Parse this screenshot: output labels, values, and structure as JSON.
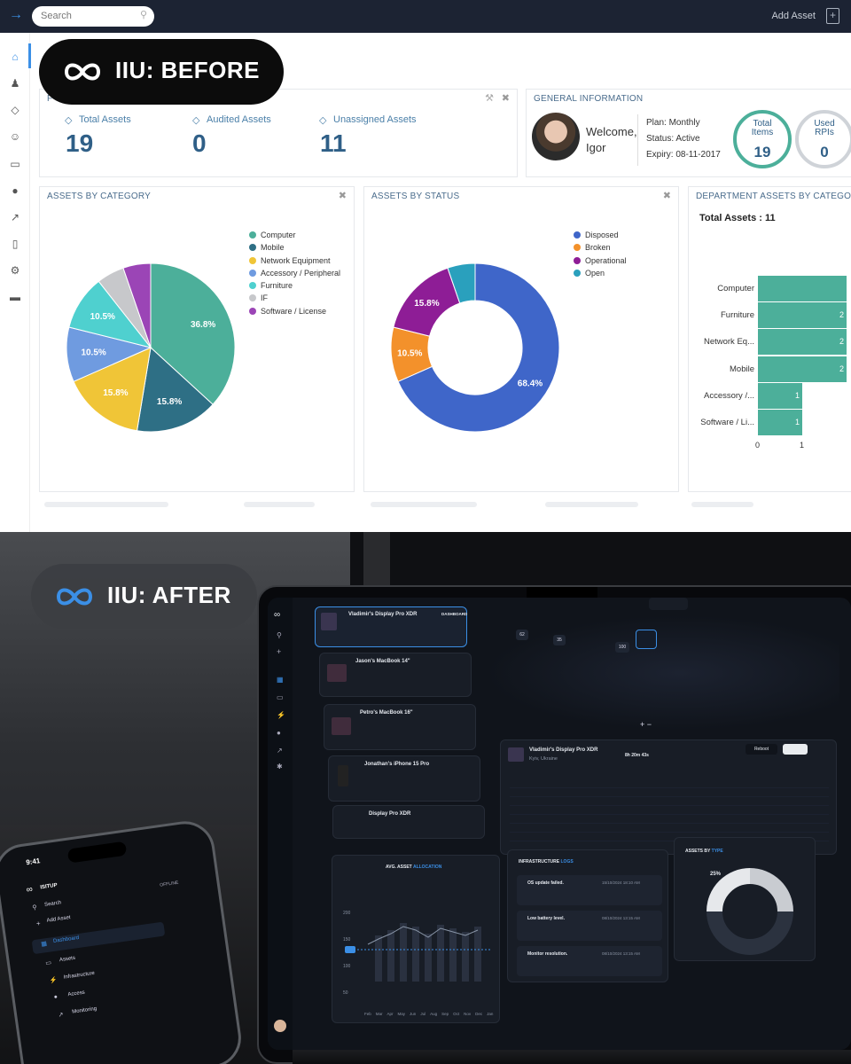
{
  "before": {
    "overlay_label": "IIU: BEFORE",
    "search": {
      "placeholder": "Search"
    },
    "header": {
      "add_asset_label": "Add Asset"
    },
    "stats": {
      "panel_title": "F",
      "items": [
        {
          "label": "Total Assets",
          "value": "19"
        },
        {
          "label": "Audited Assets",
          "value": "0"
        },
        {
          "label": "Unassigned Assets",
          "value": "11"
        }
      ]
    },
    "general_info": {
      "title": "GENERAL INFORMATION",
      "welcome": "Welcome,",
      "user": "Igor",
      "plan": "Plan: Monthly",
      "status": "Status: Active",
      "expiry": "Expiry: 08-11-2017",
      "total_items_label_1": "Total",
      "total_items_label_2": "Items",
      "total_items_value": "19",
      "used_rpis_label_1": "Used",
      "used_rpis_label_2": "RPIs",
      "used_rpis_value": "0"
    },
    "chart_titles": {
      "category": "ASSETS BY CATEGORY",
      "status": "ASSETS BY STATUS",
      "department": "DEPARTMENT ASSETS BY CATEGORY"
    },
    "department_total": "Total Assets : 11",
    "colors": {
      "teal": "#4caf9a",
      "navy_header": "#1c2333",
      "accent_blue": "#2f5f87"
    }
  },
  "chart_data": [
    {
      "type": "pie",
      "title": "ASSETS BY CATEGORY",
      "categories": [
        "Computer",
        "Mobile",
        "Network Equipment",
        "Accessory / Peripheral",
        "Furniture",
        "IF",
        "Software / License"
      ],
      "values": [
        36.8,
        15.8,
        15.8,
        10.5,
        10.5,
        5.3,
        5.3
      ],
      "labels": [
        "36.8%",
        "15.8%",
        "15.8%",
        "10.5%",
        "10.5%",
        "",
        ""
      ],
      "colors": [
        "#4caf9a",
        "#2e6f85",
        "#f0c537",
        "#6f9be0",
        "#4fd0cf",
        "#c7c8cb",
        "#9b45b6"
      ],
      "legend": "right"
    },
    {
      "type": "pie",
      "title": "ASSETS BY STATUS",
      "categories": [
        "Disposed",
        "Broken",
        "Operational",
        "Open"
      ],
      "values": [
        68.4,
        10.5,
        15.8,
        5.3
      ],
      "labels": [
        "68.4%",
        "10.5%",
        "15.8%",
        ""
      ],
      "colors": [
        "#3f66c9",
        "#f3912b",
        "#8e1d96",
        "#2aa0bd"
      ],
      "legend": "right"
    },
    {
      "type": "bar",
      "title": "DEPARTMENT ASSETS BY CATEGORY",
      "categories": [
        "Computer",
        "Furniture",
        "Network Eq...",
        "Mobile",
        "Accessory /...",
        "Software / Li..."
      ],
      "values": [
        2,
        2,
        2,
        2,
        1,
        1
      ],
      "labels": [
        "",
        "2",
        "2",
        "2",
        "1",
        "1"
      ],
      "xticks": [
        "0",
        "1"
      ],
      "orientation": "horizontal"
    }
  ],
  "after": {
    "overlay_label": "IIU: AFTER",
    "desktop": {
      "assets": [
        {
          "name": "Vladimir's Display Pro XDR",
          "tag": "DASHBOARD"
        },
        {
          "name": "Jason's MacBook 14\""
        },
        {
          "name": "Petro's MacBook 16\""
        },
        {
          "name": "Jonathan's iPhone 15 Pro"
        },
        {
          "name": "Display Pro XDR"
        }
      ],
      "detail_title": "Vladimir's Display Pro XDR",
      "detail_sub": "Kyiv, Ukraine",
      "uptime": "8h 20m 43s",
      "reboot_label": "Reboot",
      "chart_title_1": "AVG. ASSET",
      "chart_title_2": "ALLOCATION",
      "chart_months": [
        "Feb",
        "Mar",
        "Apr",
        "May",
        "Jun",
        "Jul",
        "Aug",
        "Sep",
        "Oct",
        "Nov",
        "Dec",
        "Jan"
      ],
      "chart_ticks": [
        "200",
        "150",
        "100",
        "50"
      ],
      "logs_title_1": "INFRASTRUCTURE",
      "logs_title_2": "LOGS",
      "logs": [
        {
          "title": "OS update failed.",
          "date": "15/10/2024 18:10 AM"
        },
        {
          "title": "Low battery level.",
          "date": "08/10/2024 13:15 AM"
        },
        {
          "title": "Monitor resolution.",
          "date": "08/10/2024 13:15 AM"
        }
      ],
      "types_title_1": "ASSETS BY",
      "types_title_2": "TYPE",
      "types_pct": "25%",
      "map_pins": [
        "62",
        "35",
        "100"
      ]
    },
    "phone": {
      "time": "9:41",
      "brand": "ISITUP",
      "menu": [
        "Search",
        "Add Asset",
        "Dashboard",
        "Assets",
        "Infrastructure",
        "Access",
        "Monitoring"
      ],
      "filter": "OFFLINE"
    }
  }
}
